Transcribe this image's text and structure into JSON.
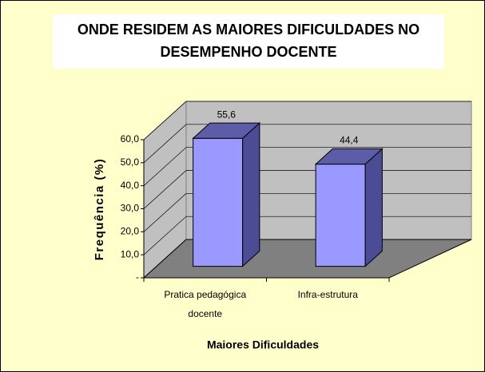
{
  "chart_data": {
    "type": "bar3d",
    "title": "ONDE RESIDEM  AS MAIORES DIFICULDADES NO DESEMPENHO DOCENTE",
    "x_label": "Maiores Dificuldades",
    "y_label": "Frequência (%)",
    "categories": [
      "Pratica pedagógica docente",
      "Infra-estrutura"
    ],
    "values": [
      55.6,
      44.4
    ],
    "value_labels": [
      "55,6",
      "44,4"
    ],
    "color": "#9999ff",
    "ylim": [
      0,
      60
    ],
    "yticks": [
      {
        "value": 0,
        "label": "-"
      },
      {
        "value": 10,
        "label": "10,0"
      },
      {
        "value": 20,
        "label": "20,0"
      },
      {
        "value": 30,
        "label": "30,0"
      },
      {
        "value": 40,
        "label": "40,0"
      },
      {
        "value": 50,
        "label": "50,0"
      },
      {
        "value": 60,
        "label": "60,0"
      }
    ],
    "grid": true
  }
}
